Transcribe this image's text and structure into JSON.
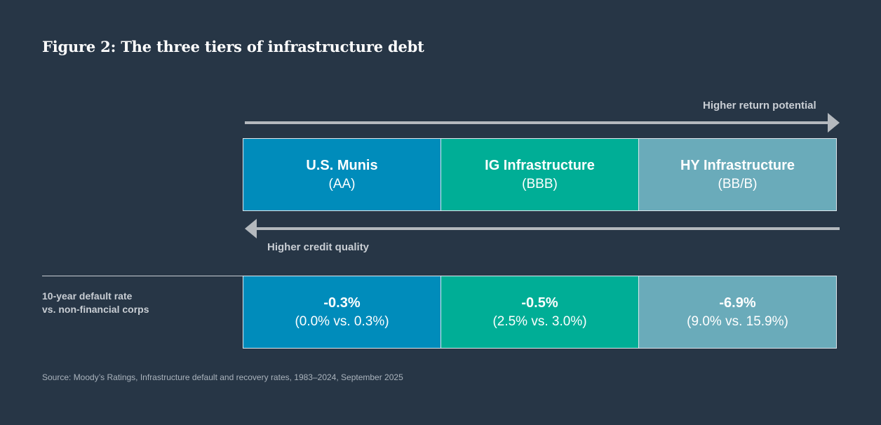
{
  "title": "Figure 2: The three tiers of infrastructure debt",
  "return_arrow_label": "Higher return potential",
  "credit_arrow_label": "Higher credit quality",
  "tiers": [
    {
      "name": "U.S. Munis",
      "rating": "(AA)",
      "color": "#008cbb"
    },
    {
      "name": "IG Infrastructure",
      "rating": "(BBB)",
      "color": "#00ae96"
    },
    {
      "name": "HY Infrastructure",
      "rating": "(BB/B)",
      "color": "#6aabba"
    }
  ],
  "default_row": {
    "label_line1": "10-year default rate",
    "label_line2": "vs. non-financial corps",
    "values": [
      {
        "rate": "-0.3%",
        "detail": "(0.0% vs. 0.3%)"
      },
      {
        "rate": "-0.5%",
        "detail": "(2.5% vs. 3.0%)"
      },
      {
        "rate": "-6.9%",
        "detail": "(9.0% vs. 15.9%)"
      }
    ]
  },
  "source": "Source: Moody’s Ratings, Infrastructure default and recovery rates, 1983–2024, September 2025",
  "colors": {
    "background": "#273646",
    "arrow": "#b4b9be",
    "label": "#c9ced4"
  }
}
